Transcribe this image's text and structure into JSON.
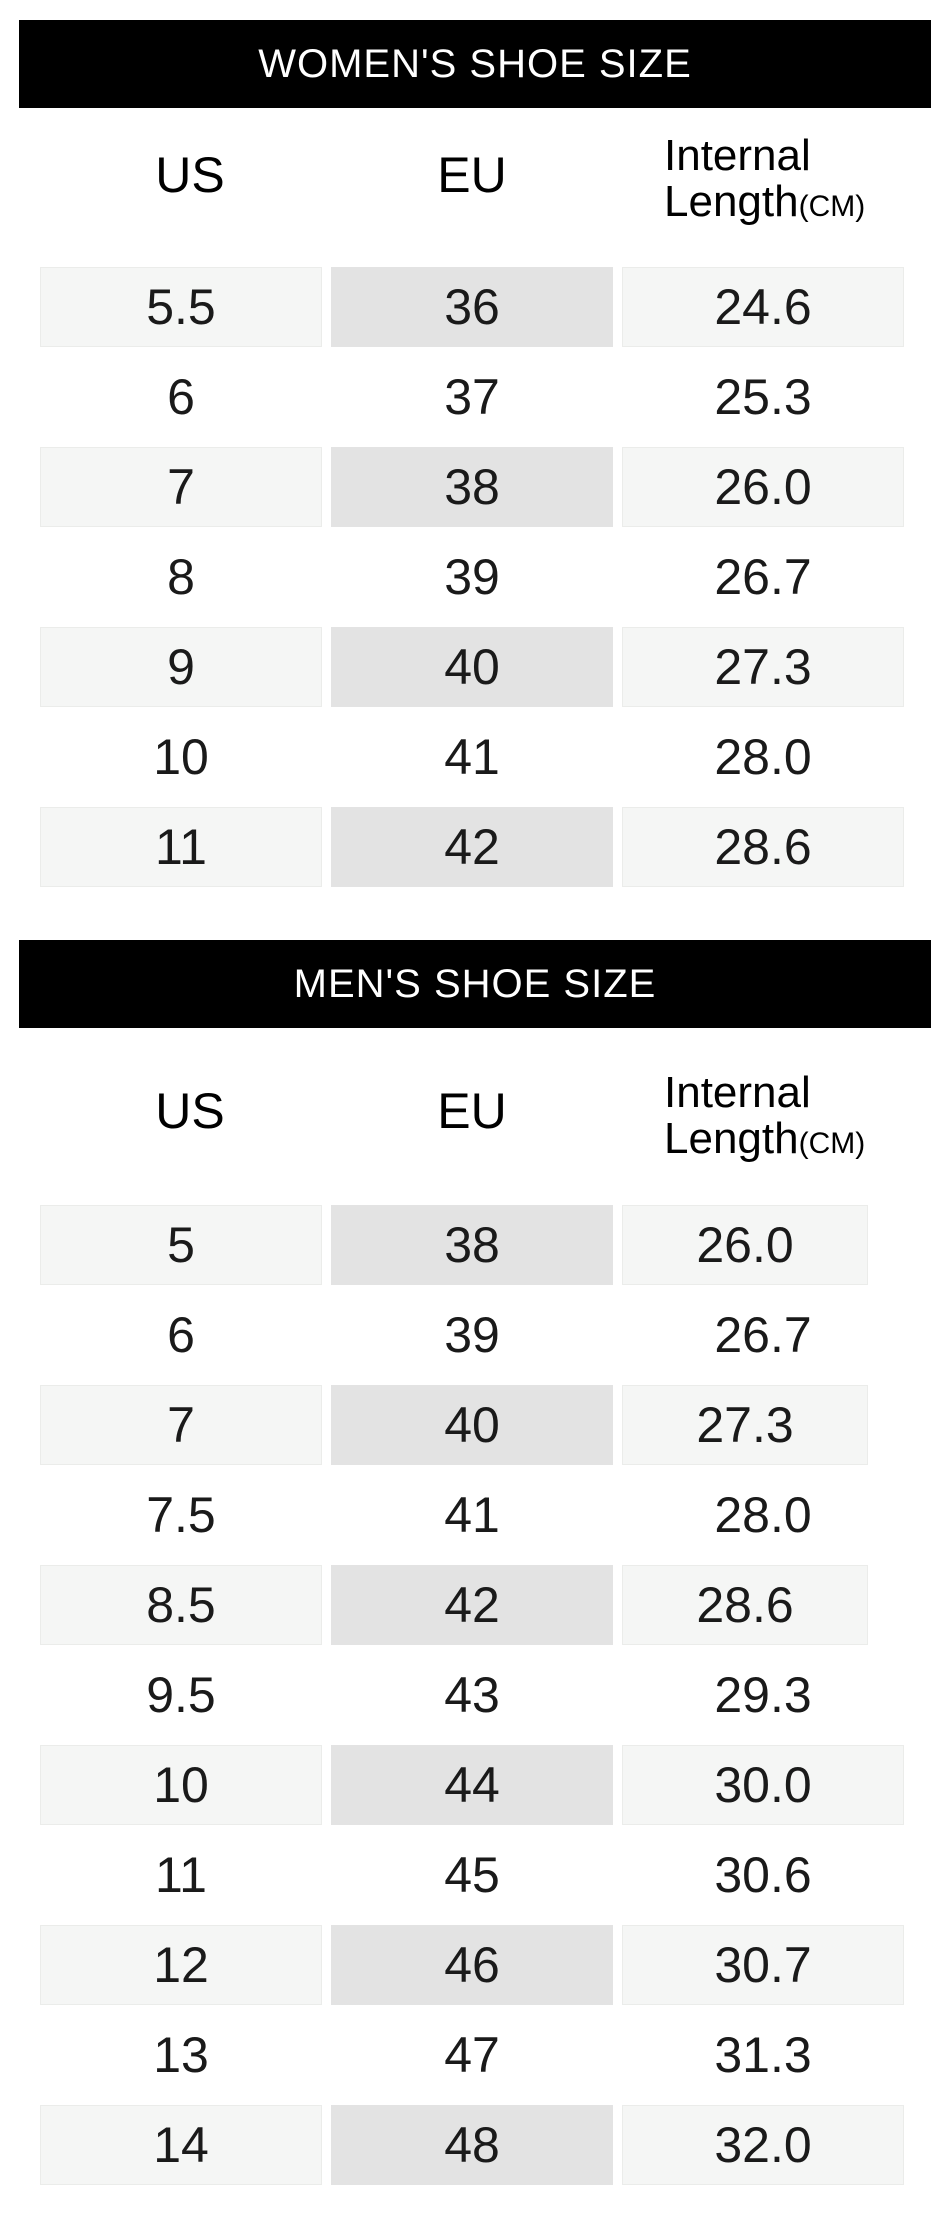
{
  "women": {
    "title": "WOMEN'S SHOE SIZE",
    "headers": {
      "us": "US",
      "eu": "EU",
      "length_line1": "Internal",
      "length_line2": "Length",
      "length_unit": "(CM)"
    },
    "rows": [
      {
        "us": "5.5",
        "eu": "36",
        "length": "24.6"
      },
      {
        "us": "6",
        "eu": "37",
        "length": "25.3"
      },
      {
        "us": "7",
        "eu": "38",
        "length": "26.0"
      },
      {
        "us": "8",
        "eu": "39",
        "length": "26.7"
      },
      {
        "us": "9",
        "eu": "40",
        "length": "27.3"
      },
      {
        "us": "10",
        "eu": "41",
        "length": "28.0"
      },
      {
        "us": "11",
        "eu": "42",
        "length": "28.6"
      }
    ]
  },
  "men": {
    "title": "MEN'S SHOE SIZE",
    "headers": {
      "us": "US",
      "eu": "EU",
      "length_line1": "Internal",
      "length_line2": "Length",
      "length_unit": "(CM)"
    },
    "rows": [
      {
        "us": "5",
        "eu": "38",
        "length": "26.0"
      },
      {
        "us": "6",
        "eu": "39",
        "length": "26.7"
      },
      {
        "us": "7",
        "eu": "40",
        "length": "27.3"
      },
      {
        "us": "7.5",
        "eu": "41",
        "length": "28.0"
      },
      {
        "us": "8.5",
        "eu": "42",
        "length": "28.6"
      },
      {
        "us": "9.5",
        "eu": "43",
        "length": "29.3"
      },
      {
        "us": "10",
        "eu": "44",
        "length": "30.0"
      },
      {
        "us": "11",
        "eu": "45",
        "length": "30.6"
      },
      {
        "us": "12",
        "eu": "46",
        "length": "30.7"
      },
      {
        "us": "13",
        "eu": "47",
        "length": "31.3"
      },
      {
        "us": "14",
        "eu": "48",
        "length": "32.0"
      }
    ]
  }
}
